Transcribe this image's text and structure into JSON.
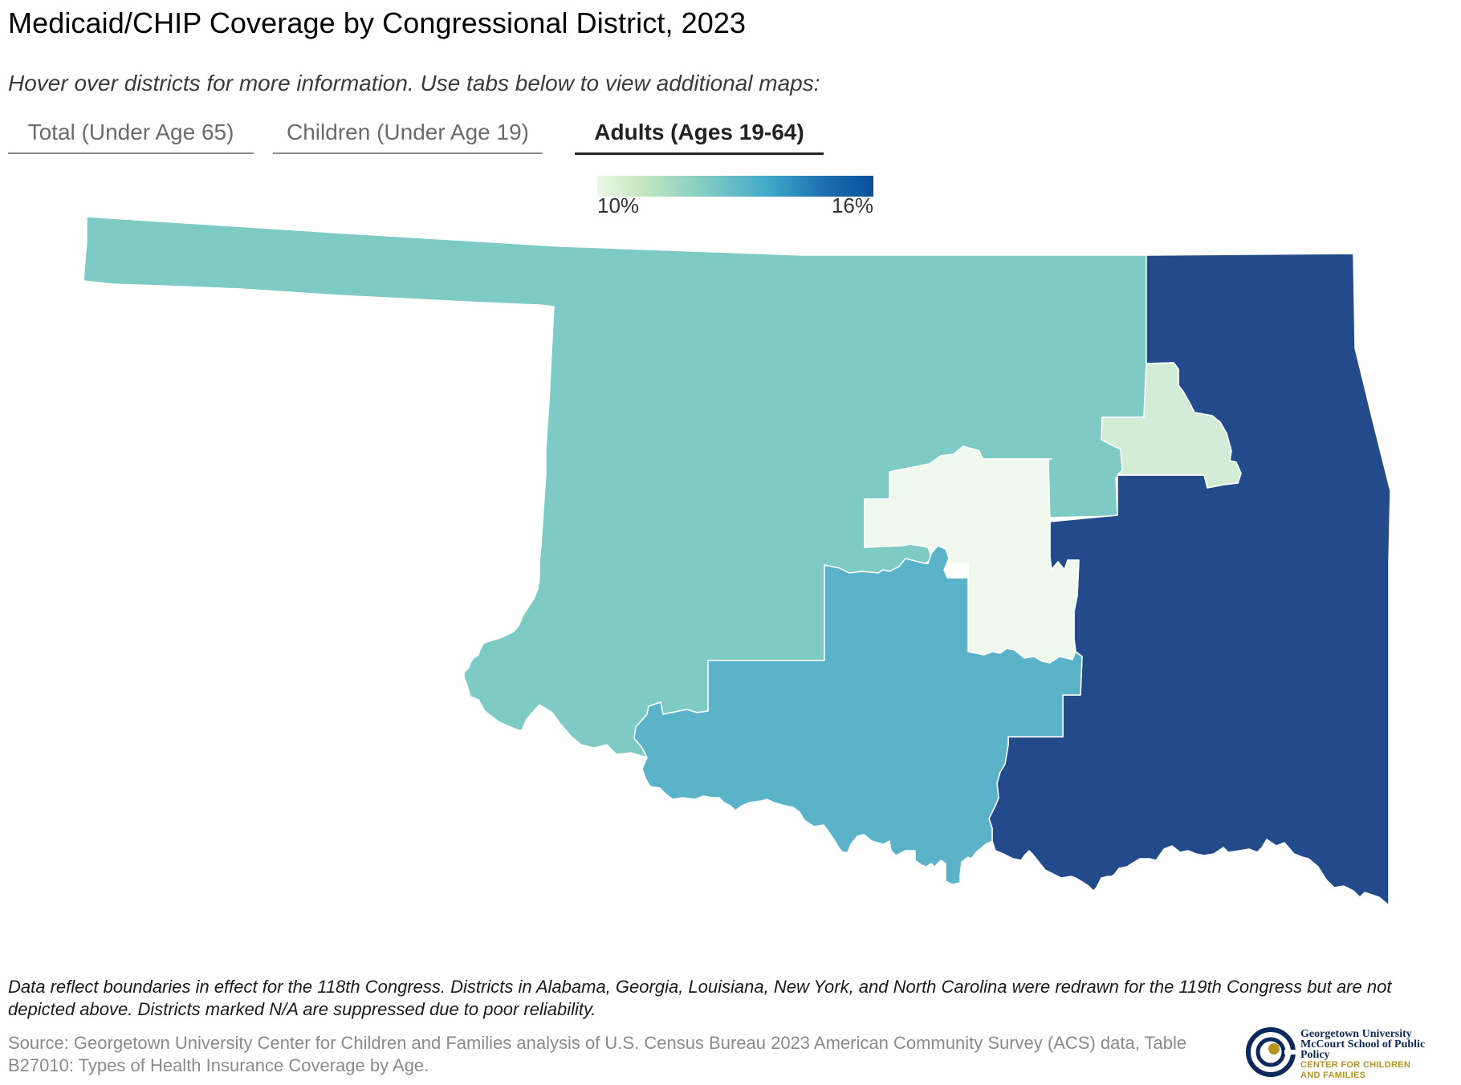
{
  "title": "Medicaid/CHIP Coverage by Congressional District, 2023",
  "subtitle": "Hover over districts for more information. Use tabs below to view additional maps:",
  "tabs": [
    {
      "label": "Total (Under Age 65)",
      "active": false
    },
    {
      "label": "Children (Under Age 19)",
      "active": false
    },
    {
      "label": "Adults (Ages 19-64)",
      "active": true
    }
  ],
  "legend": {
    "min_label": "10%",
    "max_label": "16%",
    "colors": [
      "#edf8e9",
      "#c7e9c0",
      "#7ecac4",
      "#41a9c9",
      "#1d6fb1",
      "#08519c"
    ]
  },
  "map": {
    "state": "Oklahoma",
    "districts": [
      {
        "id": "ok-3",
        "color": "#7ecac4"
      },
      {
        "id": "ok-2",
        "color": "#234a8a"
      },
      {
        "id": "ok-1",
        "color": "#d3ecd6"
      },
      {
        "id": "ok-5",
        "color": "#eff8ec"
      },
      {
        "id": "ok-4",
        "color": "#5ab3c8"
      }
    ]
  },
  "note": "Data reflect boundaries in effect for the 118th Congress. Districts in Alabama, Georgia, Louisiana, New York, and North Carolina were redrawn for the 119th Congress but are not depicted above. Districts marked N/A are suppressed due to poor reliability.",
  "source": "Source: Georgetown University Center for Children and Families analysis of U.S. Census Bureau 2023 American Community Survey (ACS) data, Table B27010: Types of Health Insurance Coverage by Age.",
  "logo": {
    "line1": "Georgetown University",
    "line2": "McCourt School of Public Policy",
    "line3": "CENTER FOR CHILDREN",
    "line4": "AND FAMILIES",
    "colors": {
      "navy": "#0b2a5b",
      "gold": "#b8941e"
    }
  }
}
